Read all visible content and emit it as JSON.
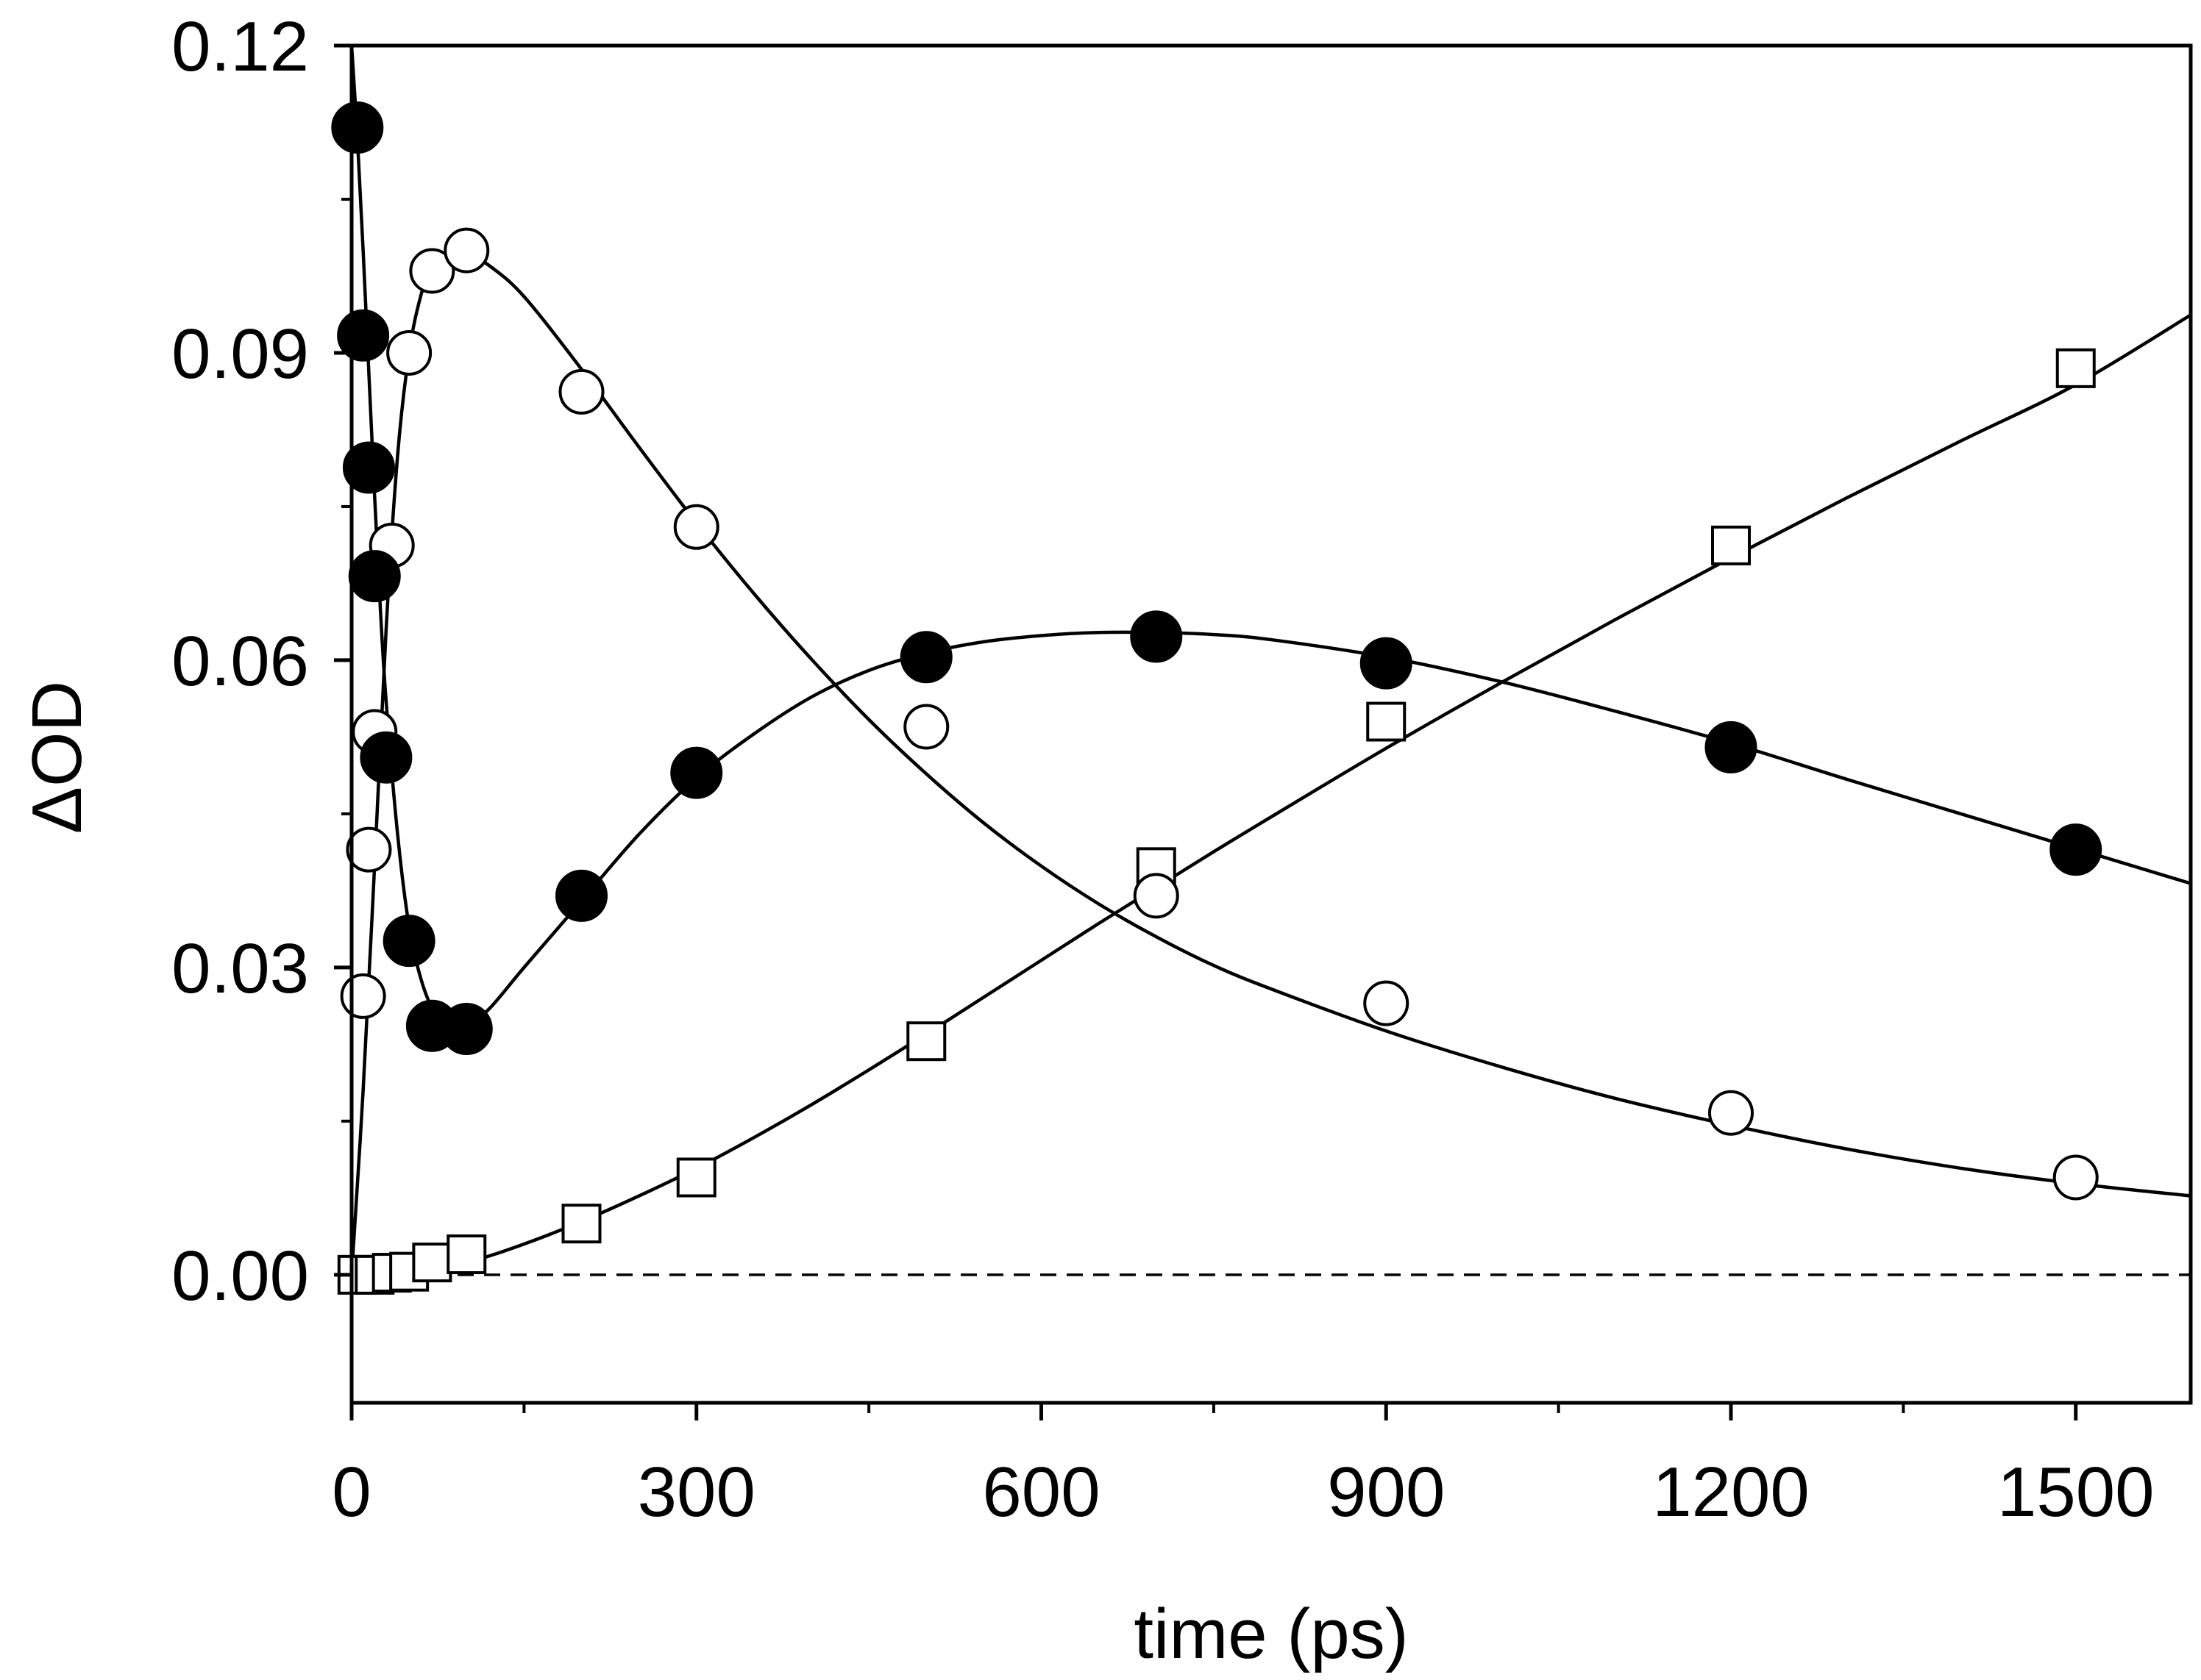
{
  "chart_data": {
    "type": "scatter",
    "title": "",
    "xlabel": "time (ps)",
    "ylabel": "ΔOD",
    "xlim": [
      0,
      1600
    ],
    "ylim": [
      -0.0125,
      0.12
    ],
    "grid": false,
    "x_ticks": [
      0,
      300,
      600,
      900,
      1200,
      1500
    ],
    "x_tick_labels": [
      "0",
      "300",
      "600",
      "900",
      "1200",
      "1500"
    ],
    "x_minor_ticks": [
      150,
      450,
      750,
      1050,
      1350
    ],
    "y_ticks": [
      0.0,
      0.03,
      0.06,
      0.09,
      0.12
    ],
    "y_tick_labels": [
      "0.00",
      "0.03",
      "0.06",
      "0.09",
      "0.12"
    ],
    "y_minor_ticks": [
      0.015,
      0.045,
      0.075,
      0.105
    ],
    "reference_line": {
      "y": 0.0,
      "style": "dashed"
    },
    "series": [
      {
        "name": "filled circles",
        "marker": "filled-circle",
        "x": [
          5,
          10,
          15,
          20,
          30,
          50,
          70,
          100,
          200,
          300,
          500,
          700,
          900,
          1200,
          1500
        ],
        "y": [
          0.112,
          0.0917,
          0.0788,
          0.0682,
          0.0505,
          0.0326,
          0.0243,
          0.024,
          0.037,
          0.049,
          0.0603,
          0.0623,
          0.0597,
          0.0515,
          0.0415
        ],
        "fit_x": [
          0,
          5,
          10,
          15,
          20,
          25,
          30,
          40,
          50,
          60,
          70,
          80,
          90,
          100,
          120,
          150,
          200,
          250,
          300,
          350,
          400,
          450,
          500,
          550,
          600,
          650,
          700,
          750,
          800,
          900,
          1000,
          1100,
          1200,
          1300,
          1400,
          1500,
          1600
        ],
        "fit_y": [
          0.12,
          0.111,
          0.1,
          0.088,
          0.076,
          0.065,
          0.056,
          0.043,
          0.034,
          0.029,
          0.026,
          0.0245,
          0.024,
          0.0243,
          0.026,
          0.03,
          0.0365,
          0.043,
          0.0485,
          0.0528,
          0.0564,
          0.059,
          0.0607,
          0.0618,
          0.0624,
          0.0627,
          0.0627,
          0.0625,
          0.062,
          0.0603,
          0.0579,
          0.055,
          0.0519,
          0.0484,
          0.045,
          0.0416,
          0.0382
        ]
      },
      {
        "name": "open circles",
        "marker": "open-circle",
        "x": [
          10,
          15,
          20,
          35,
          50,
          70,
          100,
          200,
          300,
          500,
          700,
          900,
          1200,
          1500
        ],
        "y": [
          0.0272,
          0.0415,
          0.053,
          0.0712,
          0.09,
          0.098,
          0.1,
          0.0862,
          0.073,
          0.0535,
          0.037,
          0.0265,
          0.0158,
          0.0095
        ],
        "fit_x": [
          0,
          10,
          20,
          30,
          40,
          50,
          60,
          70,
          80,
          90,
          100,
          120,
          150,
          200,
          250,
          300,
          350,
          400,
          450,
          500,
          550,
          600,
          650,
          700,
          750,
          800,
          900,
          1000,
          1100,
          1200,
          1300,
          1400,
          1500,
          1600
        ],
        "fit_y": [
          0.0,
          0.018,
          0.04,
          0.063,
          0.08,
          0.09,
          0.0955,
          0.0985,
          0.0997,
          0.1,
          0.0998,
          0.0985,
          0.0955,
          0.0884,
          0.0808,
          0.0734,
          0.0665,
          0.0601,
          0.0542,
          0.0489,
          0.0441,
          0.0399,
          0.0362,
          0.033,
          0.0302,
          0.0279,
          0.0238,
          0.0203,
          0.0172,
          0.0146,
          0.0123,
          0.0104,
          0.0089,
          0.0077
        ]
      },
      {
        "name": "open squares",
        "marker": "open-square",
        "x": [
          5,
          20,
          35,
          50,
          70,
          100,
          200,
          300,
          500,
          700,
          900,
          1200,
          1500
        ],
        "y": [
          0.0,
          0.0,
          0.0002,
          0.0003,
          0.0012,
          0.002,
          0.005,
          0.0095,
          0.0228,
          0.0398,
          0.054,
          0.0712,
          0.0885
        ],
        "fit_x": [
          0,
          50,
          100,
          150,
          200,
          250,
          300,
          350,
          400,
          450,
          500,
          550,
          600,
          650,
          700,
          750,
          800,
          900,
          1000,
          1100,
          1200,
          1300,
          1400,
          1500,
          1600
        ],
        "fit_y": [
          0.0,
          0.0002,
          0.0012,
          0.003,
          0.0052,
          0.0077,
          0.0104,
          0.0134,
          0.0166,
          0.02,
          0.0235,
          0.0271,
          0.0307,
          0.0343,
          0.0378,
          0.0413,
          0.0447,
          0.0514,
          0.0578,
          0.064,
          0.07,
          0.0758,
          0.0814,
          0.0869,
          0.0937
        ]
      }
    ]
  }
}
